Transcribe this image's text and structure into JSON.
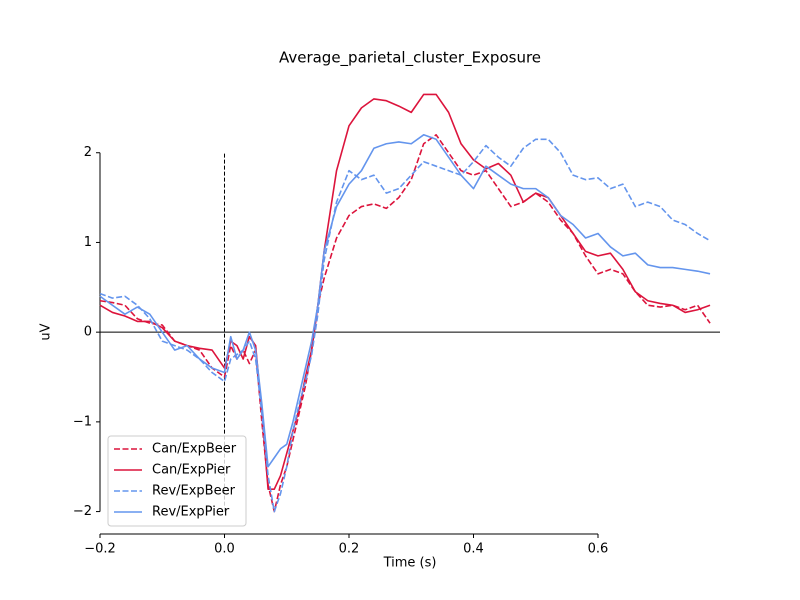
{
  "chart_data": {
    "type": "line",
    "title": "Average_parietal_cluster_Exposure",
    "xlabel": "Time (s)",
    "ylabel": "uV",
    "x": [
      -0.2,
      -0.18,
      -0.16,
      -0.14,
      -0.12,
      -0.1,
      -0.08,
      -0.06,
      -0.04,
      -0.02,
      0,
      0.01,
      0.02,
      0.03,
      0.04,
      0.05,
      0.06,
      0.07,
      0.08,
      0.09,
      0.1,
      0.11,
      0.12,
      0.13,
      0.14,
      0.15,
      0.16,
      0.18,
      0.2,
      0.22,
      0.24,
      0.26,
      0.28,
      0.3,
      0.32,
      0.34,
      0.36,
      0.38,
      0.4,
      0.42,
      0.44,
      0.46,
      0.48,
      0.5,
      0.52,
      0.54,
      0.56,
      0.58,
      0.6,
      0.62,
      0.64,
      0.66,
      0.68,
      0.7,
      0.72,
      0.74,
      0.76,
      0.78
    ],
    "series": [
      {
        "name": "Can/ExpBeer",
        "color": "#dc143c",
        "dashed": true,
        "values": [
          0.35,
          0.33,
          0.3,
          0.15,
          0.1,
          0.08,
          -0.1,
          -0.15,
          -0.2,
          -0.4,
          -0.5,
          -0.15,
          -0.3,
          -0.2,
          -0.35,
          -0.2,
          -1.0,
          -1.7,
          -2.0,
          -1.7,
          -1.5,
          -1.2,
          -0.9,
          -0.6,
          -0.2,
          0.3,
          0.6,
          1.05,
          1.3,
          1.4,
          1.43,
          1.38,
          1.5,
          1.7,
          2.1,
          2.2,
          2.0,
          1.8,
          1.75,
          1.8,
          1.6,
          1.4,
          1.45,
          1.55,
          1.45,
          1.25,
          1.1,
          0.85,
          0.65,
          0.7,
          0.65,
          0.45,
          0.3,
          0.28,
          0.3,
          0.25,
          0.3,
          0.1
        ]
      },
      {
        "name": "Can/ExpPier",
        "color": "#dc143c",
        "dashed": false,
        "values": [
          0.3,
          0.22,
          0.18,
          0.12,
          0.12,
          0.05,
          -0.1,
          -0.15,
          -0.18,
          -0.2,
          -0.4,
          -0.1,
          -0.15,
          -0.3,
          -0.05,
          -0.15,
          -0.9,
          -1.75,
          -1.75,
          -1.6,
          -1.35,
          -1.1,
          -0.85,
          -0.5,
          -0.2,
          0.3,
          0.9,
          1.8,
          2.3,
          2.5,
          2.6,
          2.58,
          2.52,
          2.45,
          2.65,
          2.65,
          2.45,
          2.1,
          1.92,
          1.82,
          1.88,
          1.75,
          1.45,
          1.55,
          1.5,
          1.3,
          1.1,
          0.9,
          0.85,
          0.88,
          0.7,
          0.45,
          0.35,
          0.32,
          0.3,
          0.22,
          0.25,
          0.3
        ]
      },
      {
        "name": "Rev/ExpBeer",
        "color": "#6495ed",
        "dashed": true,
        "values": [
          0.43,
          0.38,
          0.4,
          0.3,
          0.15,
          -0.1,
          -0.15,
          -0.2,
          -0.3,
          -0.45,
          -0.55,
          -0.3,
          -0.25,
          -0.2,
          -0.1,
          -0.3,
          -0.9,
          -1.6,
          -2.0,
          -1.8,
          -1.5,
          -1.1,
          -0.8,
          -0.55,
          -0.25,
          0.2,
          0.8,
          1.45,
          1.8,
          1.7,
          1.75,
          1.55,
          1.6,
          1.75,
          1.9,
          1.85,
          1.8,
          1.75,
          1.9,
          2.08,
          1.95,
          1.85,
          2.05,
          2.15,
          2.15,
          2.0,
          1.75,
          1.7,
          1.72,
          1.6,
          1.65,
          1.4,
          1.45,
          1.4,
          1.25,
          1.2,
          1.1,
          1.02
        ]
      },
      {
        "name": "Rev/ExpPier",
        "color": "#6495ed",
        "dashed": false,
        "values": [
          0.4,
          0.3,
          0.2,
          0.28,
          0.2,
          0.0,
          -0.2,
          -0.15,
          -0.3,
          -0.4,
          -0.45,
          -0.05,
          -0.3,
          -0.2,
          0.0,
          -0.2,
          -0.8,
          -1.5,
          -1.4,
          -1.3,
          -1.25,
          -1.0,
          -0.7,
          -0.4,
          -0.1,
          0.3,
          0.9,
          1.4,
          1.65,
          1.8,
          2.05,
          2.1,
          2.12,
          2.1,
          2.2,
          2.15,
          1.95,
          1.75,
          1.6,
          1.85,
          1.75,
          1.65,
          1.6,
          1.6,
          1.5,
          1.3,
          1.2,
          1.05,
          1.1,
          0.95,
          0.85,
          0.88,
          0.75,
          0.72,
          0.72,
          0.7,
          0.68,
          0.65
        ]
      }
    ],
    "xlim": [
      -0.2,
      0.796
    ],
    "ylim": [
      -2.25,
      2.9
    ],
    "xticks": [
      {
        "value": -0.2,
        "label": "−0.2"
      },
      {
        "value": 0,
        "label": "0.0"
      },
      0.2,
      0.4,
      0.6
    ],
    "yticks": [
      {
        "value": -2,
        "label": "−2"
      },
      {
        "value": -1,
        "label": "−1"
      },
      0,
      1,
      2
    ],
    "hline": 0,
    "vline": {
      "x": 0,
      "ymin": -2,
      "ymax": 2
    },
    "legend": "lower left"
  }
}
